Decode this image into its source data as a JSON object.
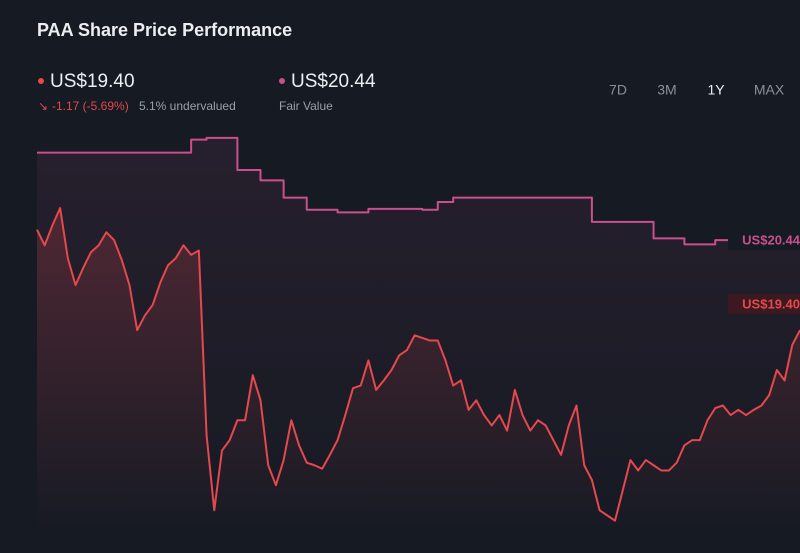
{
  "chart_data": {
    "type": "line",
    "title": "PAA Share Price Performance",
    "change": "-1.17 (-5.69%)",
    "valuation": "5.1% undervalued",
    "ranges": [
      "7D",
      "3M",
      "1Y",
      "MAX"
    ],
    "selected_range": 2,
    "ylim": [
      17,
      22
    ],
    "series": [
      {
        "label": "US$19.40",
        "color": "#e5484d",
        "step": false,
        "values": [
          20.56,
          20.38,
          20.61,
          20.81,
          20.23,
          19.92,
          20.12,
          20.3,
          20.38,
          20.53,
          20.44,
          20.21,
          19.92,
          19.4,
          19.57,
          19.69,
          19.95,
          20.15,
          20.23,
          20.38,
          20.27,
          20.32,
          18.19,
          17.32,
          18.01,
          18.13,
          18.36,
          18.36,
          18.88,
          18.59,
          17.84,
          17.61,
          17.9,
          18.36,
          18.07,
          17.87,
          17.84,
          17.8,
          17.96,
          18.13,
          18.42,
          18.73,
          18.76,
          19.05,
          18.71,
          18.82,
          18.94,
          19.11,
          19.17,
          19.34,
          19.31,
          19.28,
          19.28,
          19.05,
          18.76,
          18.82,
          18.48,
          18.59,
          18.42,
          18.3,
          18.42,
          18.24,
          18.71,
          18.42,
          18.24,
          18.36,
          18.3,
          18.13,
          17.96,
          18.3,
          18.53,
          17.84,
          17.67,
          17.32,
          17.26,
          17.2,
          17.55,
          17.9,
          17.78,
          17.9,
          17.84,
          17.78,
          17.78,
          17.87,
          18.07,
          18.13,
          18.13,
          18.36,
          18.5,
          18.53,
          18.42,
          18.48,
          18.42,
          18.48,
          18.53,
          18.65,
          18.94,
          18.82,
          19.23,
          19.4
        ]
      },
      {
        "name": "Fair Value",
        "label": "US$20.44",
        "color": "#c9508c",
        "step": true,
        "values": [
          21.45,
          21.45,
          21.45,
          21.45,
          21.45,
          21.45,
          21.45,
          21.45,
          21.45,
          21.45,
          21.45,
          21.45,
          21.45,
          21.45,
          21.45,
          21.45,
          21.45,
          21.45,
          21.45,
          21.45,
          21.6,
          21.6,
          21.62,
          21.62,
          21.62,
          21.62,
          21.25,
          21.25,
          21.25,
          21.13,
          21.13,
          21.13,
          20.93,
          20.93,
          20.93,
          20.79,
          20.79,
          20.79,
          20.79,
          20.76,
          20.76,
          20.76,
          20.76,
          20.8,
          20.8,
          20.8,
          20.8,
          20.8,
          20.8,
          20.8,
          20.79,
          20.79,
          20.88,
          20.88,
          20.93,
          20.93,
          20.93,
          20.93,
          20.93,
          20.93,
          20.93,
          20.93,
          20.93,
          20.93,
          20.93,
          20.93,
          20.93,
          20.93,
          20.93,
          20.93,
          20.93,
          20.93,
          20.65,
          20.65,
          20.65,
          20.65,
          20.65,
          20.65,
          20.65,
          20.65,
          20.46,
          20.46,
          20.46,
          20.46,
          20.39,
          20.39,
          20.39,
          20.39,
          20.44,
          20.44,
          20.44,
          20.44,
          20.44,
          20.44,
          20.44,
          20.44,
          20.44,
          20.44,
          20.44,
          20.44
        ]
      }
    ]
  }
}
